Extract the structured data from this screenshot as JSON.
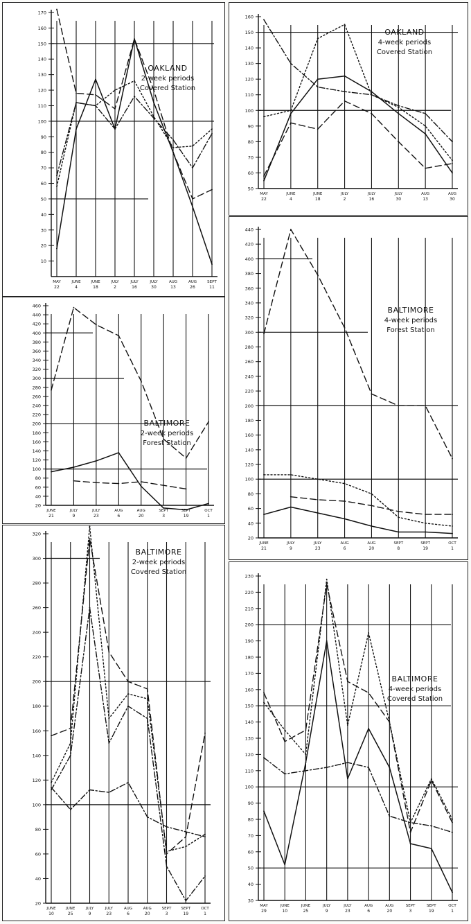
{
  "chart_data": [
    {
      "type": "line",
      "title": "OAKLAND",
      "subtitle_lines": [
        "2-week periods",
        "Covered Station"
      ],
      "ylim": [
        0,
        170
      ],
      "y_ticks": [
        10,
        20,
        30,
        40,
        50,
        60,
        70,
        80,
        90,
        100,
        110,
        120,
        130,
        140,
        150,
        160,
        170
      ],
      "y_tick_labels": [
        "10",
        "20",
        "30",
        "40",
        "50",
        "60",
        "70",
        "80",
        "90",
        "100",
        "110",
        "120",
        "130",
        "140",
        "150",
        "160",
        "170"
      ],
      "categories": [
        "MAY 22",
        "JUNE 4",
        "JUNE 18",
        "JULY 2",
        "JULY 16",
        "JULY 30",
        "AUG 13",
        "AUG 26",
        "SEPT 11"
      ],
      "cat_top": [
        "MAY",
        "JUNE",
        "JUNE",
        "JULY",
        "JULY",
        "JULY",
        "AUG",
        "AUG",
        "SEPT"
      ],
      "cat_bot": [
        "22",
        "4",
        "18",
        "2",
        "16",
        "30",
        "13",
        "26",
        "11"
      ],
      "ref_lines": [
        50,
        100,
        150
      ],
      "series": [
        {
          "style": "solid",
          "values": [
            18,
            95,
            127,
            95,
            153,
            112,
            80,
            45,
            8
          ]
        },
        {
          "style": "dashed",
          "values": [
            172,
            118,
            117,
            108,
            153,
            120,
            80,
            50,
            56
          ]
        },
        {
          "style": "dotted",
          "values": [
            58,
            112,
            110,
            120,
            126,
            103,
            83,
            84,
            95
          ]
        },
        {
          "style": "dashdot",
          "values": [
            65,
            112,
            110,
            95,
            116,
            102,
            88,
            70,
            92
          ]
        }
      ]
    },
    {
      "type": "line",
      "title": "OAKLAND",
      "subtitle_lines": [
        "4-week periods",
        "Covered Station"
      ],
      "ylim": [
        50,
        160
      ],
      "y_ticks": [
        50,
        60,
        70,
        80,
        90,
        100,
        110,
        120,
        130,
        140,
        150,
        160
      ],
      "y_tick_labels": [
        "50",
        "60",
        "70",
        "80",
        "90",
        "100",
        "110",
        "120",
        "130",
        "140",
        "150",
        "160"
      ],
      "categories": [
        "MAY 22",
        "JUNE 4",
        "JUNE 18",
        "JULY 2",
        "JULY 16",
        "JULY 30",
        "AUG 13",
        "AUG 30"
      ],
      "cat_top": [
        "MAY",
        "JUNE",
        "JUNE",
        "JULY",
        "JULY",
        "JULY",
        "AUG",
        "AUG"
      ],
      "cat_bot": [
        "22",
        "4",
        "18",
        "2",
        "16",
        "30",
        "13",
        "30"
      ],
      "ref_lines": [
        100,
        150
      ],
      "series": [
        {
          "style": "solid",
          "values": [
            55,
            98,
            120,
            122,
            112,
            98,
            85,
            60
          ]
        },
        {
          "style": "dashed",
          "values": [
            58,
            92,
            88,
            106,
            98,
            80,
            63,
            66
          ]
        },
        {
          "style": "dotted",
          "values": [
            96,
            100,
            146,
            155,
            110,
            102,
            90,
            68
          ]
        },
        {
          "style": "dashdot",
          "values": [
            158,
            130,
            115,
            112,
            110,
            103,
            98,
            80
          ]
        }
      ]
    },
    {
      "type": "line",
      "title": "BALTIMORE",
      "subtitle_lines": [
        "2-week periods",
        "Forest Station"
      ],
      "ylim": [
        20,
        460
      ],
      "y_ticks": [
        20,
        40,
        60,
        80,
        100,
        120,
        140,
        160,
        180,
        200,
        220,
        240,
        260,
        280,
        300,
        320,
        340,
        360,
        380,
        400,
        420,
        440,
        460
      ],
      "y_tick_labels": [
        "20",
        "40",
        "60",
        "80",
        "100",
        "120",
        "140",
        "160",
        "180",
        "200",
        "220",
        "240",
        "260",
        "280",
        "300",
        "320",
        "340",
        "360",
        "380",
        "400",
        "420",
        "440",
        "460"
      ],
      "categories": [
        "JUNE 21",
        "JULY 9",
        "JULY 23",
        "AUG 6",
        "AUG 20",
        "SEPT 3",
        "SEPT 19",
        "OCT 1"
      ],
      "cat_top": [
        "JUNE",
        "JULY",
        "JULY",
        "AUG",
        "AUG",
        "SEPT",
        "SEPT",
        "OCT"
      ],
      "cat_bot": [
        "21",
        "9",
        "23",
        "6",
        "20",
        "3",
        "19",
        "1"
      ],
      "ref_lines": [
        100,
        200,
        300,
        400
      ],
      "series": [
        {
          "style": "dashed",
          "values": [
            274,
            456,
            418,
            394,
            294,
            166,
            124,
            204
          ]
        },
        {
          "style": "solid",
          "values": [
            94,
            104,
            118,
            136,
            62,
            14,
            10,
            24
          ]
        },
        {
          "style": "dashed",
          "values": [
            null,
            74,
            70,
            68,
            72,
            64,
            56,
            null
          ]
        }
      ]
    },
    {
      "type": "line",
      "title": "BALTIMORE",
      "subtitle_lines": [
        "4-week periods",
        "Forest Station"
      ],
      "ylim": [
        20,
        440
      ],
      "y_ticks": [
        20,
        40,
        60,
        80,
        100,
        120,
        140,
        160,
        180,
        200,
        220,
        240,
        260,
        280,
        300,
        320,
        340,
        360,
        380,
        400,
        420,
        440
      ],
      "y_tick_labels": [
        "20",
        "40",
        "60",
        "80",
        "100",
        "120",
        "140",
        "160",
        "180",
        "200",
        "220",
        "240",
        "260",
        "280",
        "300",
        "320",
        "340",
        "360",
        "380",
        "400",
        "420",
        "440"
      ],
      "categories": [
        "JUNE 21",
        "JULY 9",
        "JULY 23",
        "AUG 6",
        "AUG 20",
        "SEPT 8",
        "SEPT 19",
        "OCT 1"
      ],
      "cat_top": [
        "JUNE",
        "JULY",
        "JULY",
        "AUG",
        "AUG",
        "SEPT",
        "SEPT",
        "OCT"
      ],
      "cat_bot": [
        "21",
        "9",
        "23",
        "6",
        "20",
        "8",
        "19",
        "1"
      ],
      "ref_lines": [
        100,
        200,
        300,
        400
      ],
      "series": [
        {
          "style": "dashed",
          "values": [
            298,
            440,
            378,
            306,
            216,
            200,
            200,
            128
          ]
        },
        {
          "style": "dotted",
          "values": [
            106,
            106,
            100,
            94,
            80,
            48,
            40,
            36
          ]
        },
        {
          "style": "dashed",
          "values": [
            null,
            76,
            72,
            70,
            64,
            56,
            52,
            52
          ]
        },
        {
          "style": "solid",
          "values": [
            52,
            62,
            54,
            46,
            36,
            28,
            28,
            26
          ]
        }
      ]
    },
    {
      "type": "line",
      "title": "BALTIMORE",
      "subtitle_lines": [
        "2-week periods",
        "Covered Station"
      ],
      "ylim": [
        20,
        320
      ],
      "y_ticks": [
        20,
        40,
        60,
        80,
        100,
        120,
        140,
        160,
        180,
        200,
        220,
        240,
        260,
        280,
        300,
        320
      ],
      "y_tick_labels": [
        "20",
        "40",
        "60",
        "80",
        "100",
        "120",
        "140",
        "160",
        "180",
        "200",
        "220",
        "240",
        "260",
        "280",
        "300",
        "320"
      ],
      "categories": [
        "JUNE 10",
        "JUNE 25",
        "JULY 9",
        "JULY 23",
        "AUG 6",
        "AUG 20",
        "SEPT 3",
        "SEPT 19",
        "OCT 1"
      ],
      "cat_top": [
        "JUNE",
        "JUNE",
        "JULY",
        "JULY",
        "AUG",
        "AUG",
        "SEPT",
        "SEPT",
        "OCT"
      ],
      "cat_bot": [
        "10",
        "25",
        "9",
        "23",
        "6",
        "20",
        "3",
        "19",
        "1"
      ],
      "ref_lines": [
        100,
        200,
        300
      ],
      "series": [
        {
          "style": "dashed",
          "values": [
            156,
            162,
            316,
            224,
            200,
            194,
            60,
            74,
            158
          ]
        },
        {
          "style": "dotted",
          "values": [
            118,
            150,
            326,
            170,
            190,
            186,
            62,
            66,
            76
          ]
        },
        {
          "style": "dashdot",
          "values": [
            112,
            140,
            260,
            150,
            180,
            170,
            50,
            22,
            42
          ]
        },
        {
          "style": "dashdot",
          "values": [
            114,
            96,
            112,
            110,
            118,
            90,
            82,
            78,
            74
          ]
        }
      ]
    },
    {
      "type": "line",
      "title": "BALTIMORE",
      "subtitle_lines": [
        "4-week periods",
        "Covered Station"
      ],
      "ylim": [
        30,
        230
      ],
      "y_ticks": [
        30,
        40,
        50,
        60,
        70,
        80,
        90,
        100,
        110,
        120,
        130,
        140,
        150,
        160,
        170,
        180,
        190,
        200,
        210,
        220,
        230
      ],
      "y_tick_labels": [
        "30",
        "40",
        "50",
        "60",
        "70",
        "80",
        "90",
        "100",
        "110",
        "120",
        "130",
        "140",
        "150",
        "160",
        "170",
        "180",
        "190",
        "200",
        "210",
        "220",
        "230"
      ],
      "categories": [
        "MAY 29",
        "JUNE 10",
        "JUNE 25",
        "JULY 9",
        "JULY 23",
        "AUG 6",
        "AUG 20",
        "SEPT 3",
        "SEPT 19",
        "OCT 1"
      ],
      "cat_top": [
        "MAY",
        "JUNE",
        "JUNE",
        "JULY",
        "JULY",
        "AUG",
        "AUG",
        "SEPT",
        "SEPT",
        "OCT"
      ],
      "cat_bot": [
        "29",
        "10",
        "25",
        "9",
        "23",
        "6",
        "20",
        "3",
        "19",
        "1"
      ],
      "ref_lines": [
        50,
        100,
        150,
        200
      ],
      "series": [
        {
          "style": "dashed",
          "values": [
            158,
            128,
            135,
            225,
            165,
            158,
            140,
            72,
            104,
            78
          ]
        },
        {
          "style": "dotted",
          "values": [
            152,
            135,
            120,
            228,
            138,
            195,
            140,
            78,
            105,
            80
          ]
        },
        {
          "style": "solid",
          "values": [
            85,
            52,
            115,
            190,
            105,
            136,
            112,
            65,
            62,
            35
          ]
        },
        {
          "style": "dashdot",
          "values": [
            118,
            108,
            110,
            112,
            115,
            112,
            82,
            78,
            76,
            72
          ]
        }
      ]
    }
  ]
}
